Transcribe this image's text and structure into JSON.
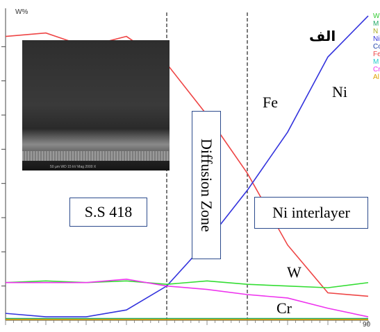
{
  "chart_data": {
    "type": "line",
    "ylabel": "W%",
    "x_tick_label_end": "90",
    "annotation_right": "الف",
    "regions": [
      "S.S 418",
      "Diffusion Zone",
      "Ni interlayer"
    ],
    "series": [
      {
        "name": "Fe",
        "color": "#ee4444",
        "x": [
          0,
          10,
          20,
          30,
          40,
          50,
          60,
          70,
          80,
          90
        ],
        "y": [
          8.3,
          8.4,
          8.0,
          8.3,
          7.5,
          6.0,
          4.3,
          2.2,
          0.8,
          0.7
        ]
      },
      {
        "name": "Ni",
        "color": "#3333dd",
        "x": [
          0,
          10,
          20,
          30,
          40,
          50,
          60,
          70,
          80,
          90
        ],
        "y": [
          0.2,
          0.1,
          0.1,
          0.3,
          1.0,
          2.3,
          3.8,
          5.5,
          7.7,
          8.9
        ]
      },
      {
        "name": "W",
        "color": "#33dd33",
        "x": [
          0,
          10,
          20,
          30,
          40,
          50,
          60,
          70,
          80,
          90
        ],
        "y": [
          1.1,
          1.15,
          1.1,
          1.15,
          1.05,
          1.15,
          1.05,
          1.0,
          0.95,
          1.1
        ]
      },
      {
        "name": "Cr",
        "color": "#ee33ee",
        "x": [
          0,
          10,
          20,
          30,
          40,
          50,
          60,
          70,
          80,
          90
        ],
        "y": [
          1.1,
          1.1,
          1.1,
          1.2,
          1.0,
          0.9,
          0.75,
          0.65,
          0.35,
          0.1
        ]
      },
      {
        "color": "#22aa66",
        "x": [
          0,
          30,
          90
        ],
        "y": [
          0.05,
          0.05,
          0.05
        ]
      },
      {
        "color": "#e0a000",
        "x": [
          0,
          30,
          90
        ],
        "y": [
          0.02,
          0.02,
          0.02
        ]
      }
    ],
    "vlines": [
      40,
      60
    ],
    "legend": [
      {
        "text": "W",
        "color": "#33cc33"
      },
      {
        "text": "M",
        "color": "#22aa66"
      },
      {
        "text": "N",
        "color": "#aaaa22"
      },
      {
        "text": "Ni",
        "color": "#3333dd"
      },
      {
        "text": "Co",
        "color": "#2244aa"
      },
      {
        "text": "Fe",
        "color": "#ee4444"
      },
      {
        "text": "M",
        "color": "#22cccc"
      },
      {
        "text": "Cr",
        "color": "#ee33ee"
      },
      {
        "text": "Al",
        "color": "#e0a000"
      }
    ],
    "xlim": [
      0,
      90
    ],
    "ylim": [
      0,
      9
    ]
  },
  "image_caption": "50 µm  WD 15 kV  Mag 2000 X"
}
